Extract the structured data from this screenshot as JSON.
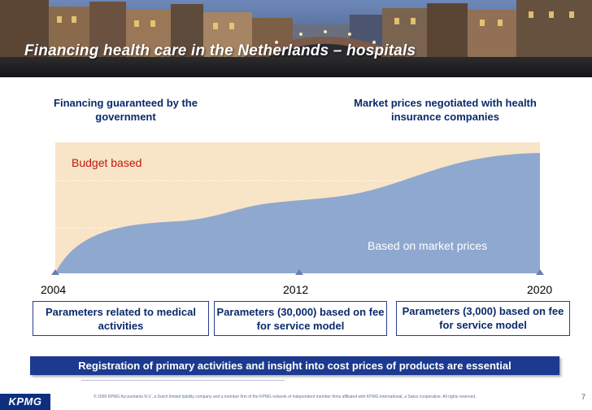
{
  "slide": {
    "title": "Financing health care in the Netherlands – hospitals"
  },
  "headings": {
    "left": "Financing guaranteed by the government",
    "right": "Market prices negotiated with health insurance companies"
  },
  "chart": {
    "budget_label": "Budget based",
    "market_label": "Based on market prices",
    "colors": {
      "budget_fill": "#f8e4c6",
      "market_fill": "#8fa8cf",
      "budget_text": "#c0180c"
    }
  },
  "timeline": {
    "years": [
      "2004",
      "2012",
      "2020"
    ]
  },
  "parameters": [
    "Parameters related to medical activities",
    "Parameters (30,000) based on fee for service model",
    "Parameters (3,000) based on fee for service model"
  ],
  "footer": {
    "bar_text": "Registration of primary activities and insight into cost prices of products are essential",
    "copyright": "© 2009 KPMG Accountants N.V., a Dutch limited liability company and a member firm of the KPMG network of independent member firms affiliated with KPMG International, a Swiss cooperative. All rights reserved.",
    "page_number": "7",
    "logo_text": "KPMG"
  }
}
